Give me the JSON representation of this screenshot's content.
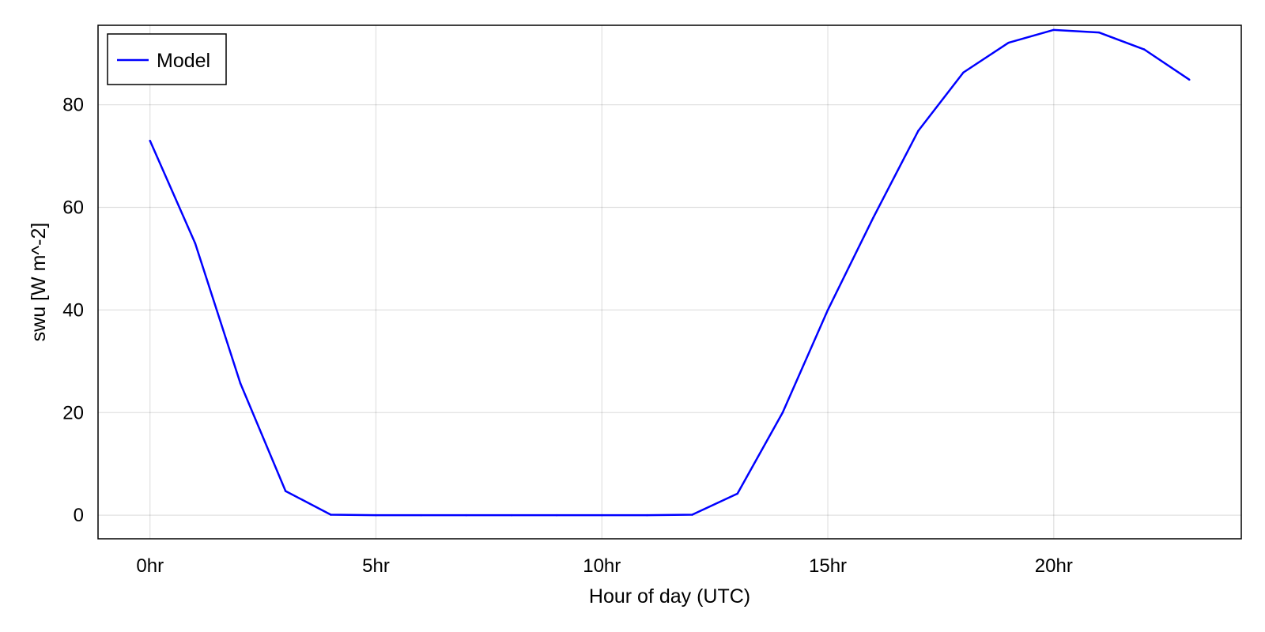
{
  "chart_data": {
    "type": "line",
    "xlabel": "Hour of day (UTC)",
    "ylabel": "swu [W m^-2]",
    "xlim": [
      -1.15,
      24.15
    ],
    "ylim": [
      -4.6,
      95.5
    ],
    "x_ticks": [
      {
        "value": 0,
        "label": "0hr"
      },
      {
        "value": 5,
        "label": "5hr"
      },
      {
        "value": 10,
        "label": "10hr"
      },
      {
        "value": 15,
        "label": "15hr"
      },
      {
        "value": 20,
        "label": "20hr"
      }
    ],
    "y_ticks": [
      {
        "value": 0,
        "label": "0"
      },
      {
        "value": 20,
        "label": "20"
      },
      {
        "value": 40,
        "label": "40"
      },
      {
        "value": 60,
        "label": "60"
      },
      {
        "value": 80,
        "label": "80"
      }
    ],
    "grid": true,
    "legend_position": "top-left",
    "series": [
      {
        "name": "Model",
        "color": "#0000ff",
        "x": [
          0,
          1,
          2,
          3,
          4,
          5,
          6,
          7,
          8,
          9,
          10,
          11,
          12,
          13,
          14,
          15,
          16,
          17,
          18,
          19,
          20,
          21,
          22,
          23
        ],
        "y": [
          73,
          53,
          25.7,
          4.7,
          0.1,
          0,
          0,
          0,
          0,
          0,
          0,
          0,
          0.1,
          4.2,
          20,
          40,
          57.9,
          74.9,
          86.3,
          92.1,
          94.6,
          94.1,
          90.8,
          84.9
        ]
      }
    ]
  }
}
